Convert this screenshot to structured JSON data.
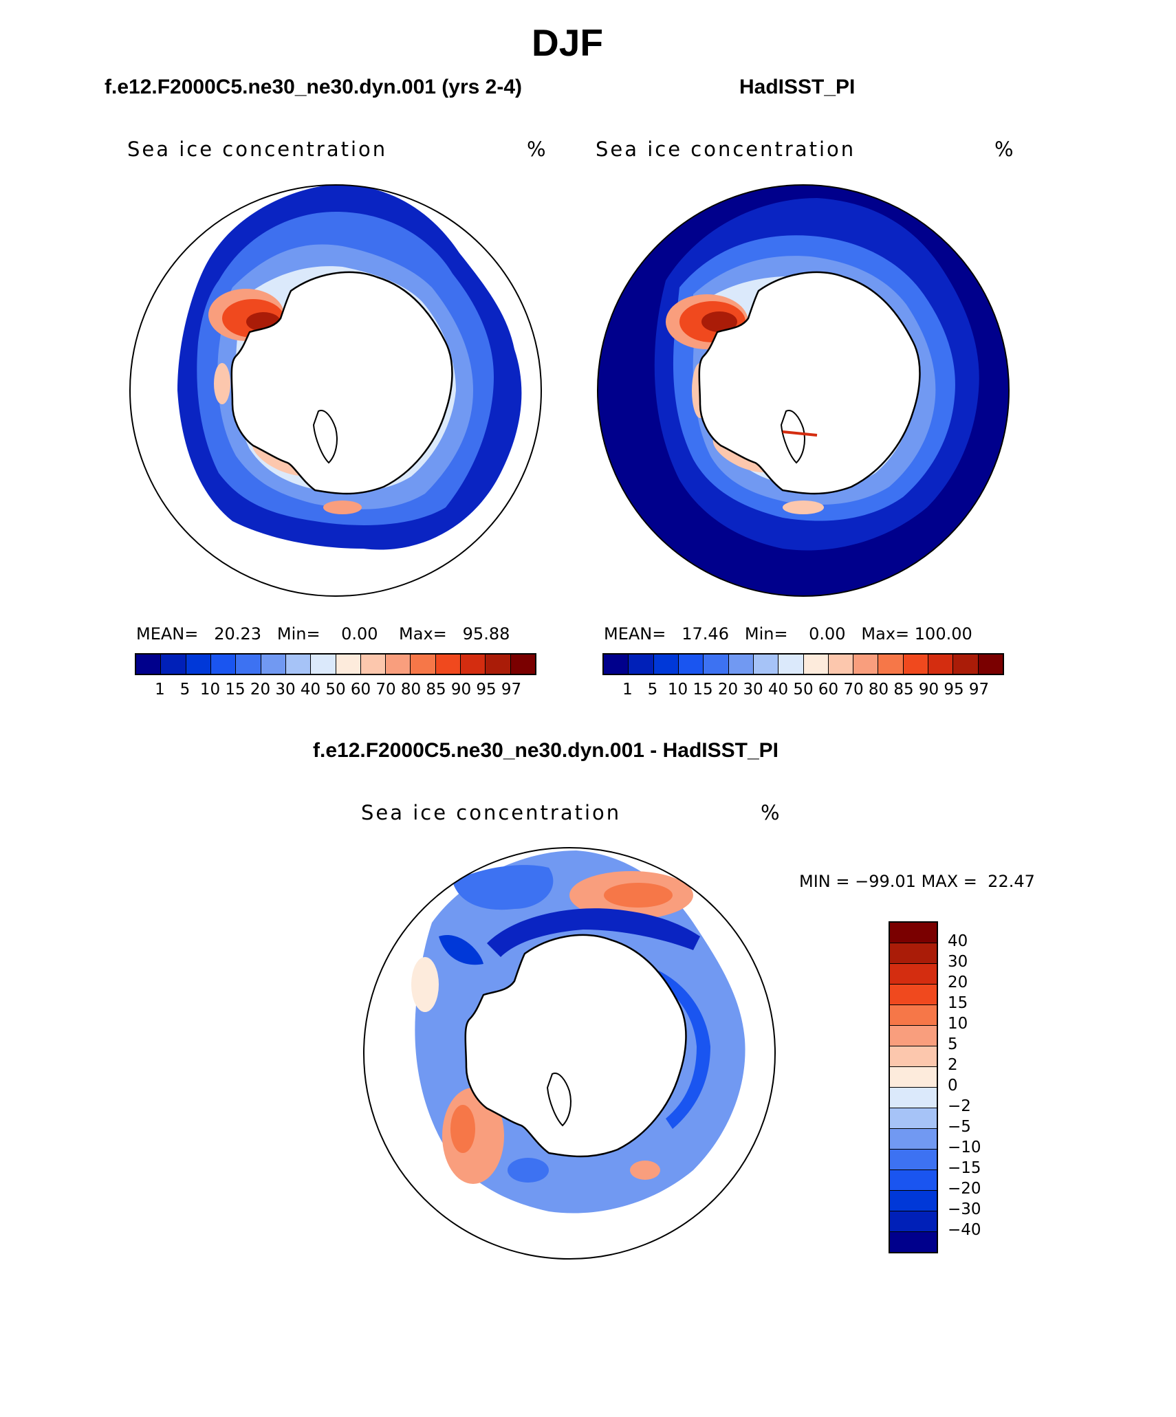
{
  "title": "DJF",
  "panels": {
    "model": {
      "title": "f.e12.F2000C5.ne30_ne30.dyn.001 (yrs 2-4)",
      "variable": "Sea ice concentration",
      "units": "%",
      "mean_label": "MEAN=",
      "mean": "20.23",
      "min_label": "Min=",
      "min": "0.00",
      "max_label": "Max=",
      "max": "95.88"
    },
    "obs": {
      "title": "HadISST_PI",
      "variable": "Sea ice concentration",
      "units": "%",
      "mean_label": "MEAN=",
      "mean": "17.46",
      "min_label": "Min=",
      "min": "0.00",
      "max_label": "Max=",
      "max": "100.00"
    },
    "diff": {
      "title": "f.e12.F2000C5.ne30_ne30.dyn.001 - HadISST_PI",
      "variable": "Sea ice concentration",
      "units": "%",
      "min_label": "MIN =",
      "min": "−99.01",
      "max_label": "MAX =",
      "max": "22.47"
    }
  },
  "colorbar_abs": {
    "levels": [
      "1",
      "5",
      "10",
      "15",
      "20",
      "30",
      "40",
      "50",
      "60",
      "70",
      "80",
      "85",
      "90",
      "95",
      "97"
    ],
    "colors": [
      "#00008c",
      "#0020b8",
      "#0038d8",
      "#1a55f0",
      "#3d72f2",
      "#7199f2",
      "#a6c3f7",
      "#dbe9fb",
      "#fdebdc",
      "#fcc7ad",
      "#f99e7d",
      "#f67748",
      "#f0491e",
      "#d42d10",
      "#aa1c08",
      "#7a0000"
    ]
  },
  "colorbar_diff": {
    "levels": [
      "40",
      "30",
      "20",
      "15",
      "10",
      "5",
      "2",
      "0",
      "−2",
      "−5",
      "−10",
      "−15",
      "−20",
      "−30",
      "−40"
    ],
    "colors": [
      "#7a0000",
      "#aa1c08",
      "#d42d10",
      "#f0491e",
      "#f67748",
      "#f99e7d",
      "#fcc7ad",
      "#fdebdc",
      "#dbe9fb",
      "#a6c3f7",
      "#7199f2",
      "#3d72f2",
      "#1a55f0",
      "#0038d8",
      "#0020b8",
      "#00008c"
    ]
  }
}
